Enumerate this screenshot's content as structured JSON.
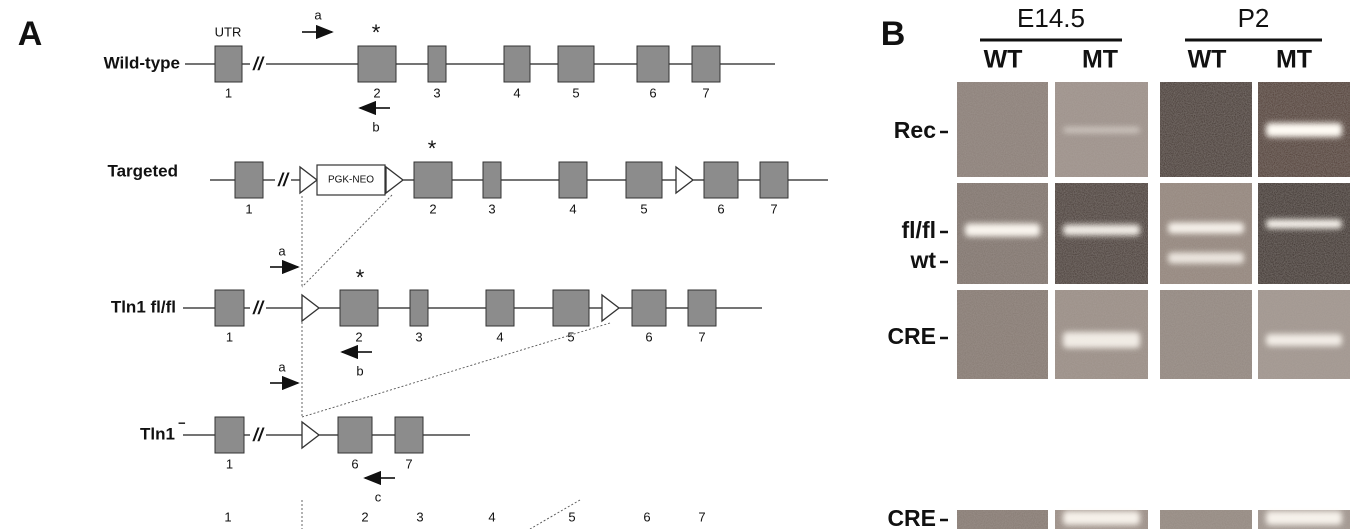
{
  "panel_a": {
    "label": "A",
    "wild_type": {
      "name": "Wild-type",
      "utr": "UTR",
      "break": "//",
      "primer_a": "a",
      "primer_b": "b",
      "asterisk": "*",
      "exons": [
        "1",
        "2",
        "3",
        "4",
        "5",
        "6",
        "7"
      ]
    },
    "targeted": {
      "name": "Targeted",
      "break": "//",
      "cassette": "PGK-NEO",
      "asterisk": "*",
      "exons": [
        "1",
        "2",
        "3",
        "4",
        "5",
        "6",
        "7"
      ]
    },
    "floxed": {
      "name": "Tln1 fl/fl",
      "break": "//",
      "primer_a": "a",
      "primer_b": "b",
      "asterisk": "*",
      "exons": [
        "1",
        "2",
        "3",
        "4",
        "5",
        "6",
        "7"
      ]
    },
    "null": {
      "name": "Tln1",
      "superscript": "−",
      "break": "//",
      "primer_a": "a",
      "primer_c": "c",
      "exons": [
        "1",
        "6",
        "7"
      ]
    },
    "partial_row": {
      "exons": [
        "1",
        "2",
        "3",
        "4",
        "5",
        "6",
        "7"
      ]
    }
  },
  "panel_b": {
    "label": "B",
    "groups": [
      {
        "name": "E14.5",
        "lanes": [
          "WT",
          "MT"
        ]
      },
      {
        "name": "P2",
        "lanes": [
          "WT",
          "MT"
        ]
      }
    ],
    "rows": [
      "Rec",
      "fl/fl",
      "wt",
      "CRE",
      "CRE"
    ]
  }
}
